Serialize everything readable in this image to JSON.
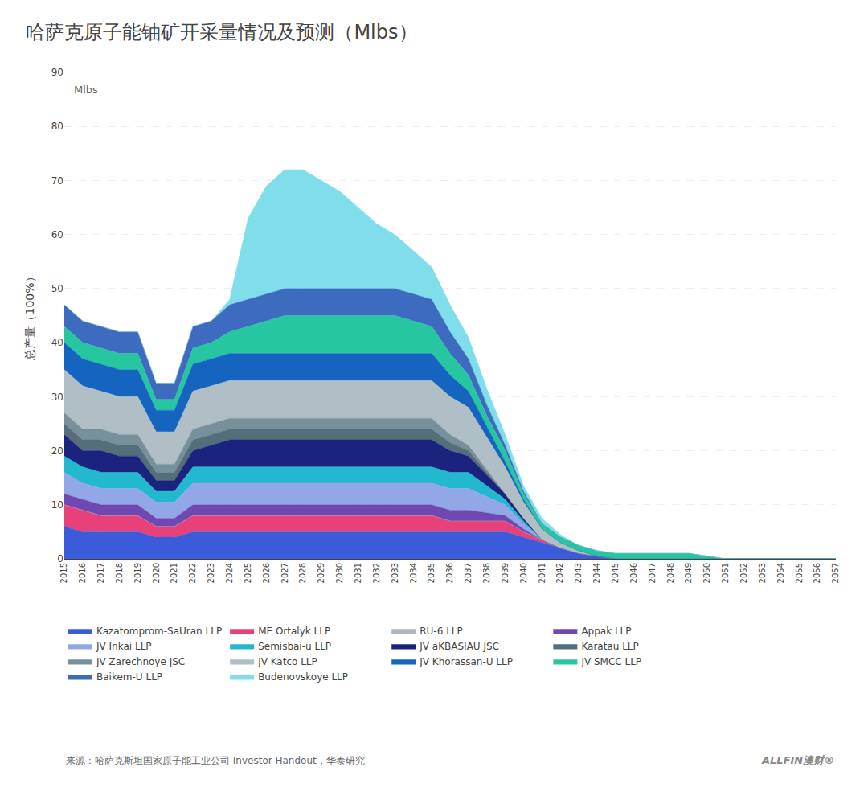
{
  "chart_data": {
    "type": "area",
    "stacked": true,
    "title": "哈萨克原子能铀矿开采量情况及预测（Mlbs）",
    "y_label": "总产量（100%）",
    "annotations": [
      "Mlbs",
      "来源：哈萨克斯坦国家原子能工业公司 Investor Handout，华泰研究",
      "ALLFIN澳财®"
    ],
    "grid": true,
    "legend": "bottom",
    "x": [
      2015,
      2016,
      2017,
      2018,
      2019,
      2020,
      2021,
      2022,
      2023,
      2024,
      2025,
      2026,
      2027,
      2028,
      2029,
      2030,
      2031,
      2032,
      2033,
      2034,
      2035,
      2036,
      2037,
      2038,
      2039,
      2040,
      2041,
      2042,
      2043,
      2044,
      2045,
      2046,
      2047,
      2048,
      2049,
      2050,
      2051,
      2052,
      2053,
      2054,
      2055,
      2056,
      2057
    ],
    "xlim": [
      2015,
      2057
    ],
    "xticks": [
      2015,
      2016,
      2017,
      2018,
      2019,
      2020,
      2021,
      2022,
      2023,
      2024,
      2025,
      2026,
      2027,
      2028,
      2029,
      2030,
      2031,
      2032,
      2033,
      2034,
      2035,
      2036,
      2037,
      2038,
      2039,
      2040,
      2041,
      2042,
      2043,
      2044,
      2045,
      2046,
      2047,
      2048,
      2049,
      2050,
      2051,
      2052,
      2053,
      2054,
      2055,
      2056,
      2057
    ],
    "ylim": [
      0,
      90
    ],
    "yticks": [
      0,
      10,
      20,
      30,
      40,
      50,
      60,
      70,
      80,
      90
    ],
    "series": [
      {
        "name": "Kazatomprom-SaUran LLP",
        "color": "#3b5bdb",
        "values": [
          6.0,
          5.0,
          5.0,
          5.0,
          5.0,
          4.0,
          4.0,
          5.0,
          5.0,
          5.0,
          5.0,
          5.0,
          5.0,
          5.0,
          5.0,
          5.0,
          5.0,
          5.0,
          5.0,
          5.0,
          5.0,
          5.0,
          5.0,
          5.0,
          5.0,
          4.0,
          3.0,
          2.0,
          1.0,
          0.5,
          0.0,
          0.0,
          0.0,
          0.0,
          0.0,
          0.0,
          0.0,
          0.0,
          0.0,
          0.0,
          0.0,
          0.0,
          0.0
        ]
      },
      {
        "name": "ME Ortalyk LLP",
        "color": "#e8417a",
        "values": [
          4.0,
          4.0,
          3.0,
          3.0,
          3.0,
          2.0,
          2.0,
          3.0,
          3.0,
          3.0,
          3.0,
          3.0,
          3.0,
          3.0,
          3.0,
          3.0,
          3.0,
          3.0,
          3.0,
          3.0,
          3.0,
          2.0,
          2.0,
          2.0,
          2.0,
          1.0,
          0.5,
          0.0,
          0.0,
          0.0,
          0.0,
          0.0,
          0.0,
          0.0,
          0.0,
          0.0,
          0.0,
          0.0,
          0.0,
          0.0,
          0.0,
          0.0,
          0.0
        ]
      },
      {
        "name": "RU-6 LLP",
        "color": "#adb5bd",
        "values": [
          0.0,
          0.0,
          0.0,
          0.0,
          0.0,
          0.0,
          0.0,
          0.0,
          0.0,
          0.0,
          0.0,
          0.0,
          0.0,
          0.0,
          0.0,
          0.0,
          0.0,
          0.0,
          0.0,
          0.0,
          0.0,
          0.0,
          0.0,
          0.0,
          0.0,
          0.0,
          0.0,
          0.0,
          0.0,
          0.0,
          0.0,
          0.0,
          0.0,
          0.0,
          0.0,
          0.0,
          0.0,
          0.0,
          0.0,
          0.0,
          0.0,
          0.0,
          0.0
        ]
      },
      {
        "name": "Appak LLP",
        "color": "#7048b2",
        "values": [
          2.0,
          2.0,
          2.0,
          2.0,
          2.0,
          1.5,
          1.5,
          2.0,
          2.0,
          2.0,
          2.0,
          2.0,
          2.0,
          2.0,
          2.0,
          2.0,
          2.0,
          2.0,
          2.0,
          2.0,
          2.0,
          2.0,
          2.0,
          1.5,
          1.0,
          0.5,
          0.0,
          0.0,
          0.0,
          0.0,
          0.0,
          0.0,
          0.0,
          0.0,
          0.0,
          0.0,
          0.0,
          0.0,
          0.0,
          0.0,
          0.0,
          0.0,
          0.0
        ]
      },
      {
        "name": "JV Inkai LLP",
        "color": "#91a7e8",
        "values": [
          4.0,
          3.0,
          3.0,
          3.0,
          3.0,
          3.0,
          3.0,
          4.0,
          4.0,
          4.0,
          4.0,
          4.0,
          4.0,
          4.0,
          4.0,
          4.0,
          4.0,
          4.0,
          4.0,
          4.0,
          4.0,
          4.0,
          4.0,
          3.0,
          2.0,
          1.0,
          0.0,
          0.0,
          0.0,
          0.0,
          0.0,
          0.0,
          0.0,
          0.0,
          0.0,
          0.0,
          0.0,
          0.0,
          0.0,
          0.0,
          0.0,
          0.0,
          0.0
        ]
      },
      {
        "name": "Semisbai-u LLP",
        "color": "#22b8cf",
        "values": [
          3.0,
          3.0,
          3.0,
          3.0,
          3.0,
          2.0,
          2.0,
          3.0,
          3.0,
          3.0,
          3.0,
          3.0,
          3.0,
          3.0,
          3.0,
          3.0,
          3.0,
          3.0,
          3.0,
          3.0,
          3.0,
          3.0,
          3.0,
          2.0,
          1.0,
          0.5,
          0.0,
          0.0,
          0.0,
          0.0,
          0.0,
          0.0,
          0.0,
          0.0,
          0.0,
          0.0,
          0.0,
          0.0,
          0.0,
          0.0,
          0.0,
          0.0,
          0.0
        ]
      },
      {
        "name": "JV aKBASIAU JSC",
        "color": "#1a237e",
        "values": [
          4.0,
          3.0,
          4.0,
          3.0,
          3.0,
          2.0,
          2.0,
          3.0,
          4.0,
          5.0,
          5.0,
          5.0,
          5.0,
          5.0,
          5.0,
          5.0,
          5.0,
          5.0,
          5.0,
          5.0,
          5.0,
          4.0,
          3.0,
          2.0,
          1.0,
          0.5,
          0.0,
          0.0,
          0.0,
          0.0,
          0.0,
          0.0,
          0.0,
          0.0,
          0.0,
          0.0,
          0.0,
          0.0,
          0.0,
          0.0,
          0.0,
          0.0,
          0.0
        ]
      },
      {
        "name": "Karatau LLP",
        "color": "#546e7a",
        "values": [
          2.0,
          2.0,
          2.0,
          2.0,
          2.0,
          1.5,
          1.5,
          2.0,
          2.0,
          2.0,
          2.0,
          2.0,
          2.0,
          2.0,
          2.0,
          2.0,
          2.0,
          2.0,
          2.0,
          2.0,
          2.0,
          1.5,
          1.0,
          0.5,
          0.0,
          0.0,
          0.0,
          0.0,
          0.0,
          0.0,
          0.0,
          0.0,
          0.0,
          0.0,
          0.0,
          0.0,
          0.0,
          0.0,
          0.0,
          0.0,
          0.0,
          0.0,
          0.0
        ]
      },
      {
        "name": "JV Zarechnoye JSC",
        "color": "#78909c",
        "values": [
          2.0,
          2.0,
          2.0,
          2.0,
          2.0,
          1.5,
          1.5,
          2.0,
          2.0,
          2.0,
          2.0,
          2.0,
          2.0,
          2.0,
          2.0,
          2.0,
          2.0,
          2.0,
          2.0,
          2.0,
          2.0,
          1.5,
          1.0,
          0.5,
          0.0,
          0.0,
          0.0,
          0.0,
          0.0,
          0.0,
          0.0,
          0.0,
          0.0,
          0.0,
          0.0,
          0.0,
          0.0,
          0.0,
          0.0,
          0.0,
          0.0,
          0.0,
          0.0
        ]
      },
      {
        "name": "JV Katco LLP",
        "color": "#b0bec5",
        "values": [
          8.0,
          8.0,
          7.0,
          7.0,
          7.0,
          6.0,
          6.0,
          7.0,
          7.0,
          7.0,
          7.0,
          7.0,
          7.0,
          7.0,
          7.0,
          7.0,
          7.0,
          7.0,
          7.0,
          7.0,
          7.0,
          7.0,
          7.0,
          6.0,
          5.0,
          3.0,
          2.0,
          1.0,
          0.5,
          0.0,
          0.0,
          0.0,
          0.0,
          0.0,
          0.0,
          0.0,
          0.0,
          0.0,
          0.0,
          0.0,
          0.0,
          0.0,
          0.0
        ]
      },
      {
        "name": "JV Khorassan-U LLP",
        "color": "#1565c0",
        "values": [
          5.0,
          5.0,
          5.0,
          5.0,
          5.0,
          4.0,
          4.0,
          5.0,
          5.0,
          5.0,
          5.0,
          5.0,
          5.0,
          5.0,
          5.0,
          5.0,
          5.0,
          5.0,
          5.0,
          5.0,
          5.0,
          4.0,
          3.0,
          2.0,
          1.0,
          0.5,
          0.0,
          0.0,
          0.0,
          0.0,
          0.0,
          0.0,
          0.0,
          0.0,
          0.0,
          0.0,
          0.0,
          0.0,
          0.0,
          0.0,
          0.0,
          0.0,
          0.0
        ]
      },
      {
        "name": "JV SMCC LLP",
        "color": "#26c6a0",
        "values": [
          3.0,
          3.0,
          3.0,
          3.0,
          3.0,
          2.0,
          2.0,
          3.0,
          3.0,
          4.0,
          5.0,
          6.0,
          7.0,
          7.0,
          7.0,
          7.0,
          7.0,
          7.0,
          7.0,
          6.0,
          5.0,
          4.0,
          3.0,
          2.0,
          2.0,
          1.0,
          1.0,
          1.0,
          1.0,
          1.0,
          1.0,
          1.0,
          1.0,
          1.0,
          1.0,
          0.5,
          0.0,
          0.0,
          0.0,
          0.0,
          0.0,
          0.0,
          0.0
        ]
      },
      {
        "name": "Baikem-U LLP",
        "color": "#3d6bbf",
        "values": [
          4.0,
          4.0,
          4.0,
          4.0,
          4.0,
          3.0,
          3.0,
          4.0,
          4.0,
          5.0,
          5.0,
          5.0,
          5.0,
          5.0,
          5.0,
          5.0,
          5.0,
          5.0,
          5.0,
          5.0,
          5.0,
          4.0,
          3.0,
          2.0,
          1.0,
          0.5,
          0.0,
          0.0,
          0.0,
          0.0,
          0.0,
          0.0,
          0.0,
          0.0,
          0.0,
          0.0,
          0.0,
          0.0,
          0.0,
          0.0,
          0.0,
          0.0,
          0.0
        ]
      },
      {
        "name": "Budenovskoye LLP",
        "color": "#80deea",
        "values": [
          0.0,
          0.0,
          0.0,
          0.0,
          0.0,
          0.0,
          0.0,
          0.0,
          0.0,
          1.0,
          15.0,
          20.0,
          22.0,
          22.0,
          20.0,
          18.0,
          15.0,
          12.0,
          10.0,
          8.0,
          6.0,
          5.0,
          4.0,
          3.0,
          2.0,
          1.0,
          1.0,
          0.5,
          0.0,
          0.0,
          0.0,
          0.0,
          0.0,
          0.0,
          0.0,
          0.0,
          0.0,
          0.0,
          0.0,
          0.0,
          0.0,
          0.0,
          0.0
        ]
      }
    ]
  }
}
